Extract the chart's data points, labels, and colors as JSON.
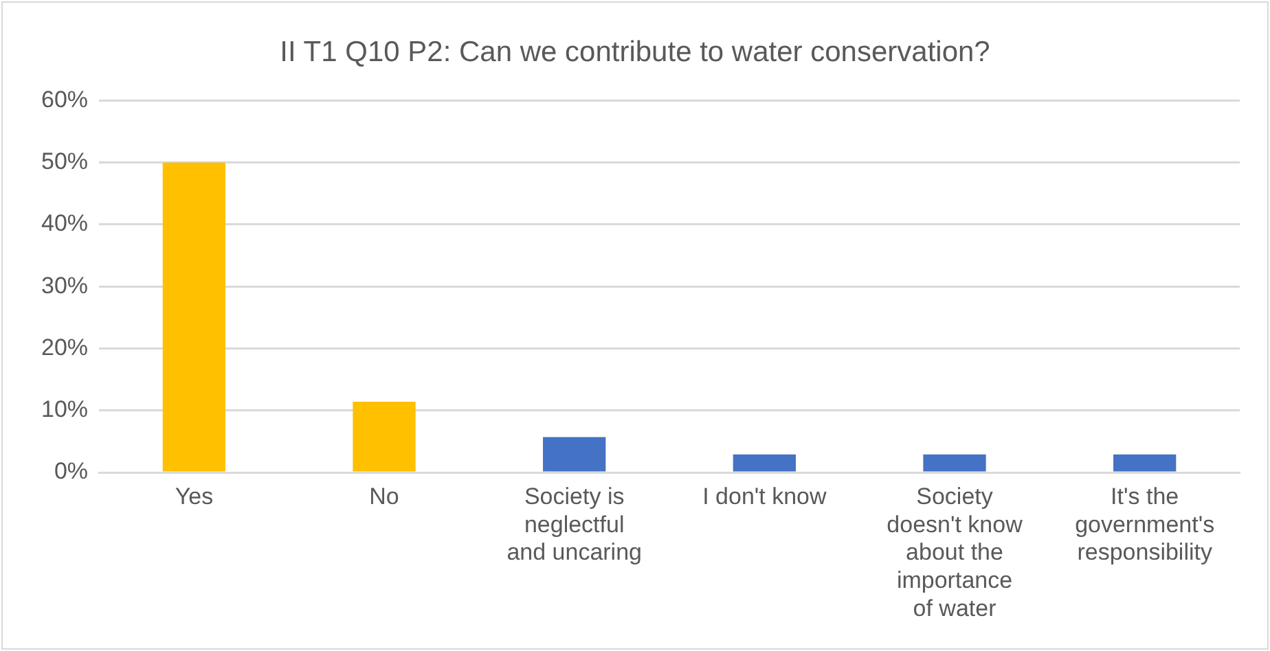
{
  "chart_data": {
    "type": "bar",
    "title": "II T1 Q10 P2: Can we contribute to water conservation?",
    "categories": [
      "Yes",
      "No",
      "Society is neglectful and uncaring",
      "I don't know",
      "Society doesn't know about the importance of water",
      "It's the government's responsibility"
    ],
    "values": [
      50,
      11.4,
      5.7,
      2.9,
      2.9,
      2.9
    ],
    "colors": [
      "#ffc000",
      "#ffc000",
      "#4472c4",
      "#4472c4",
      "#4472c4",
      "#4472c4"
    ],
    "ylim": [
      0,
      60
    ],
    "yticks": [
      {
        "value": 0,
        "label": "0%"
      },
      {
        "value": 10,
        "label": "10%"
      },
      {
        "value": 20,
        "label": "20%"
      },
      {
        "value": 30,
        "label": "30%"
      },
      {
        "value": 40,
        "label": "40%"
      },
      {
        "value": 50,
        "label": "50%"
      },
      {
        "value": 60,
        "label": "60%"
      }
    ],
    "grid": "y",
    "legend": false
  }
}
